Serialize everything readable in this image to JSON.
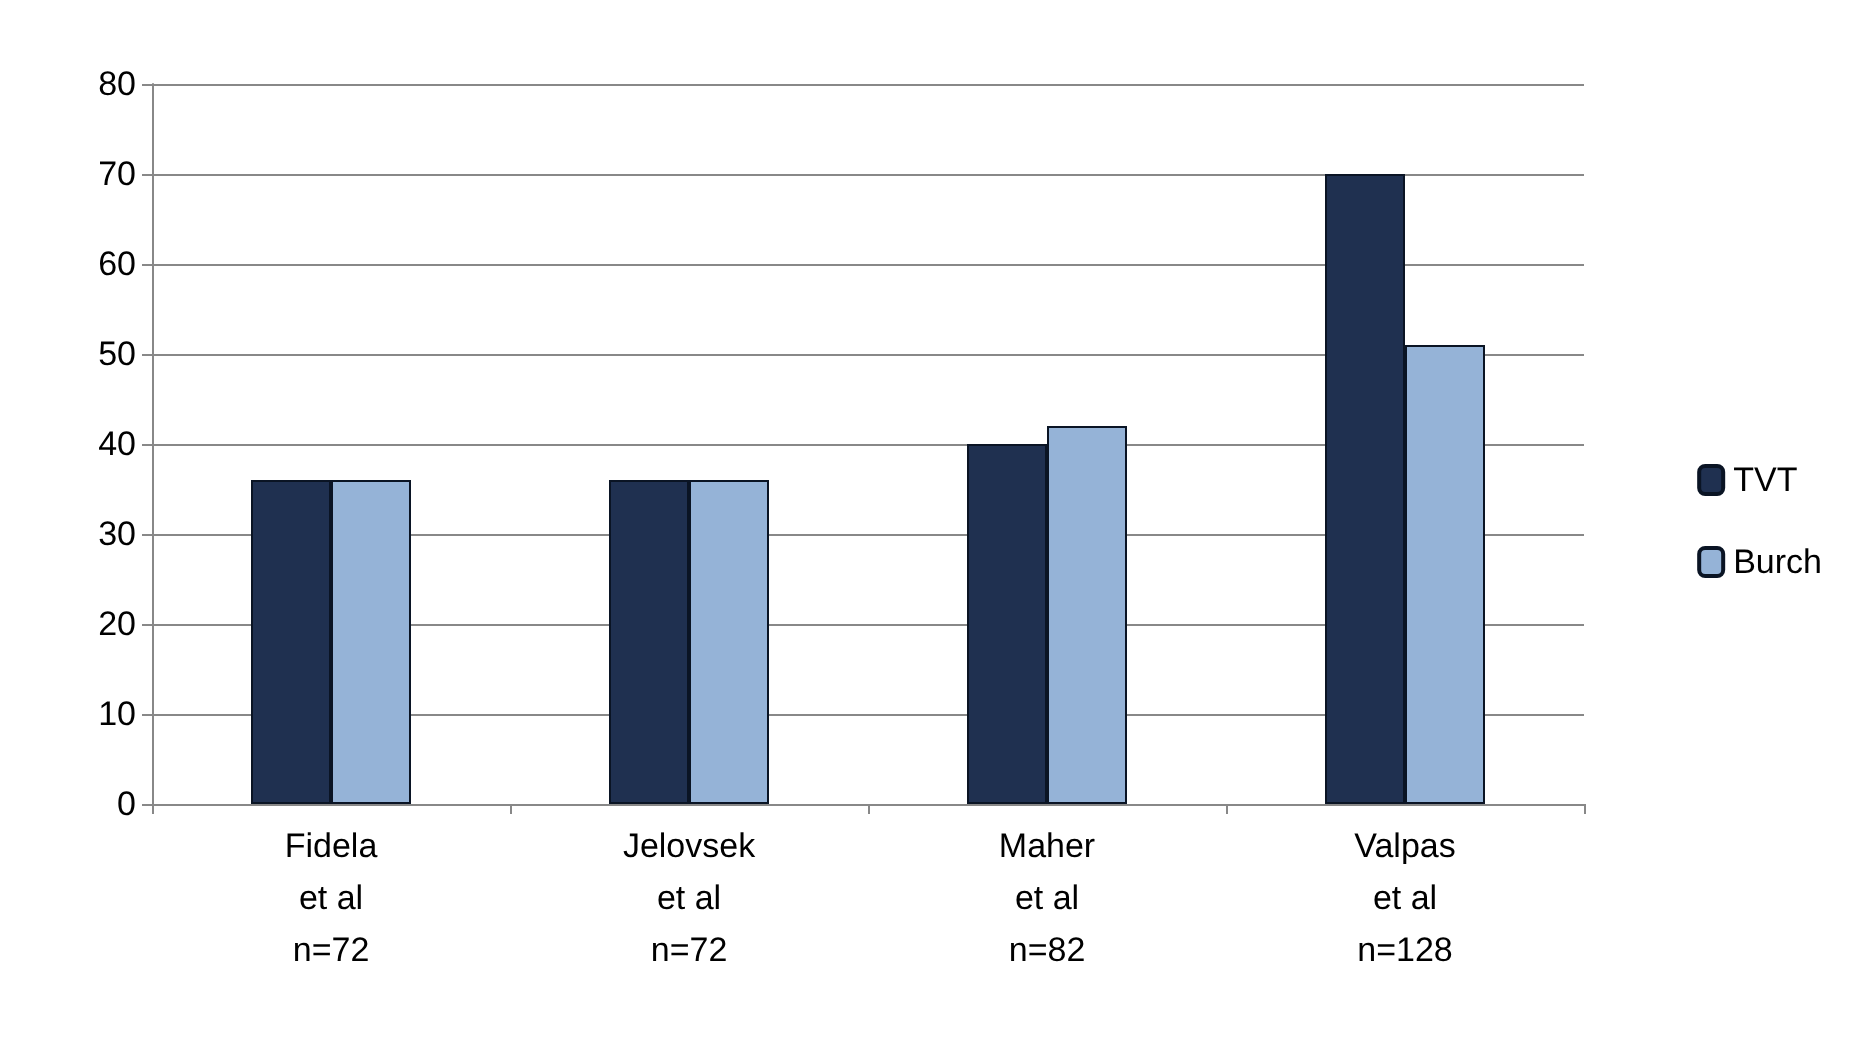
{
  "chart_data": {
    "type": "bar",
    "categories": [
      "Fidela\net al\nn=72",
      "Jelovsek\net al\nn=72",
      "Maher\net al\nn=82",
      "Valpas\net al\nn=128"
    ],
    "series": [
      {
        "name": "TVT",
        "color": "#1f3050",
        "values": [
          36,
          36,
          40,
          70
        ]
      },
      {
        "name": "Burch",
        "color": "#95b3d7",
        "values": [
          36,
          36,
          42,
          51
        ]
      }
    ],
    "ylim": [
      0,
      80
    ],
    "yticks": [
      0,
      10,
      20,
      30,
      40,
      50,
      60,
      70,
      80
    ],
    "grid": "y",
    "legend": "right"
  }
}
